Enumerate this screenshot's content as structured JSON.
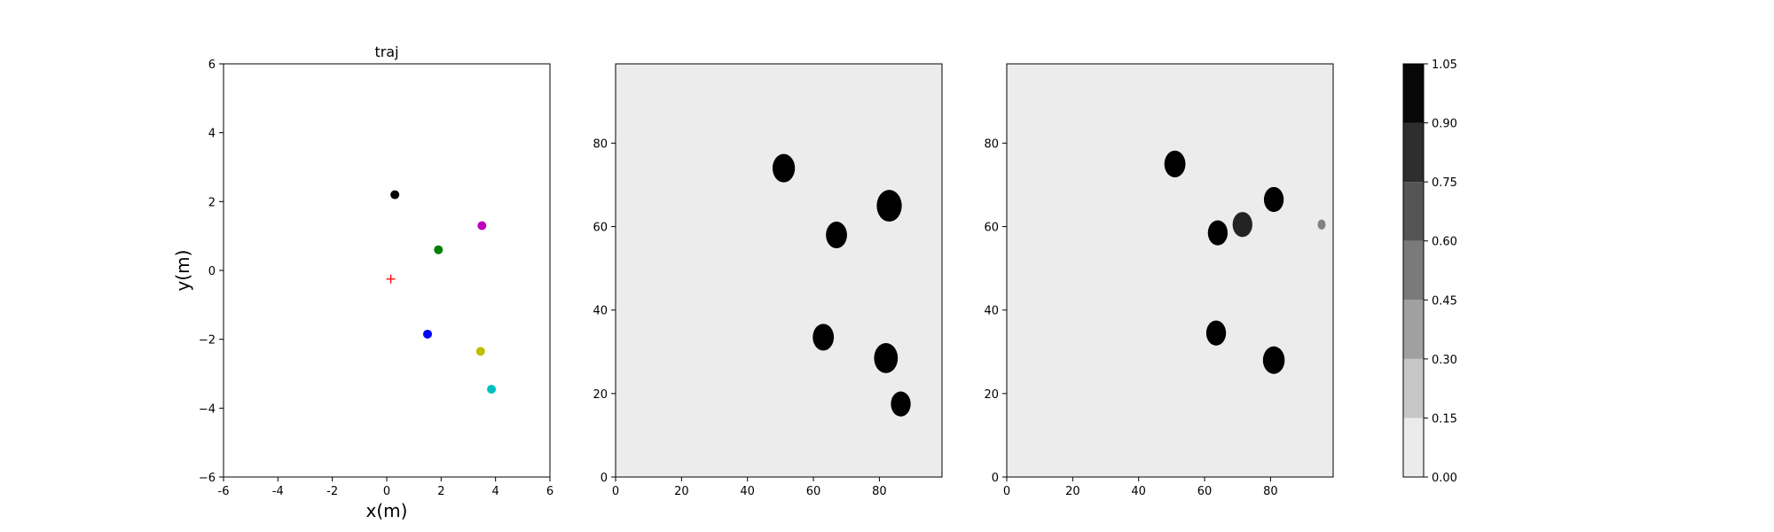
{
  "chart_data": [
    {
      "type": "scatter",
      "title": "traj",
      "xlabel": "x(m)",
      "ylabel": "y(m)",
      "xlim": [
        -6,
        6
      ],
      "ylim": [
        -6,
        6
      ],
      "xticks": [
        -6,
        -4,
        -2,
        0,
        2,
        4,
        6
      ],
      "yticks": [
        -6,
        -4,
        -2,
        0,
        2,
        4,
        6
      ],
      "grid": false,
      "points": [
        {
          "x": 0.3,
          "y": 2.2,
          "color": "#000000",
          "marker": "circle"
        },
        {
          "x": 3.5,
          "y": 1.3,
          "color": "#bf00bf",
          "marker": "circle"
        },
        {
          "x": 1.9,
          "y": 0.6,
          "color": "#008000",
          "marker": "circle"
        },
        {
          "x": 1.5,
          "y": -1.85,
          "color": "#0000ff",
          "marker": "circle"
        },
        {
          "x": 3.45,
          "y": -2.35,
          "color": "#bfbf00",
          "marker": "circle"
        },
        {
          "x": 3.85,
          "y": -3.45,
          "color": "#00bfbf",
          "marker": "circle"
        },
        {
          "x": 0.15,
          "y": -0.25,
          "color": "#ff0000",
          "marker": "plus"
        }
      ]
    },
    {
      "type": "heatmap",
      "xlim": [
        0,
        99
      ],
      "ylim": [
        0,
        99
      ],
      "xticks": [
        0,
        20,
        40,
        60,
        80
      ],
      "yticks": [
        0,
        20,
        40,
        60,
        80
      ],
      "background_value": 0.05,
      "blobs": [
        {
          "x": 51,
          "y": 74,
          "r": 3.4,
          "value": 1.0
        },
        {
          "x": 83,
          "y": 65,
          "r": 3.8,
          "value": 1.0
        },
        {
          "x": 67,
          "y": 58,
          "r": 3.2,
          "value": 1.0
        },
        {
          "x": 63,
          "y": 33.5,
          "r": 3.2,
          "value": 1.0
        },
        {
          "x": 82,
          "y": 28.5,
          "r": 3.6,
          "value": 1.0
        },
        {
          "x": 86.5,
          "y": 17.5,
          "r": 3.0,
          "value": 1.0
        }
      ]
    },
    {
      "type": "heatmap",
      "xlim": [
        0,
        99
      ],
      "ylim": [
        0,
        99
      ],
      "xticks": [
        0,
        20,
        40,
        60,
        80
      ],
      "yticks": [
        0,
        20,
        40,
        60,
        80
      ],
      "background_value": 0.05,
      "blobs": [
        {
          "x": 51,
          "y": 75,
          "r": 3.2,
          "value": 1.0
        },
        {
          "x": 81,
          "y": 66.5,
          "r": 3.0,
          "value": 1.0
        },
        {
          "x": 64,
          "y": 58.5,
          "r": 3.0,
          "value": 1.0
        },
        {
          "x": 71.5,
          "y": 60.5,
          "r": 3.0,
          "value": 0.85
        },
        {
          "x": 63.5,
          "y": 34.5,
          "r": 3.0,
          "value": 1.0
        },
        {
          "x": 81,
          "y": 28,
          "r": 3.3,
          "value": 1.0
        },
        {
          "x": 95.5,
          "y": 60.5,
          "r": 1.2,
          "value": 0.45
        }
      ]
    }
  ],
  "colorbar": {
    "levels": [
      0.0,
      0.15,
      0.3,
      0.45,
      0.6,
      0.75,
      0.9,
      1.05
    ],
    "tick_labels": [
      "0.00",
      "0.15",
      "0.30",
      "0.45",
      "0.60",
      "0.75",
      "0.90",
      "1.05"
    ],
    "colors": [
      "#ebebeb",
      "#c7c7c7",
      "#a0a0a0",
      "#7a7a7a",
      "#555555",
      "#2e2e2e",
      "#080808"
    ]
  }
}
